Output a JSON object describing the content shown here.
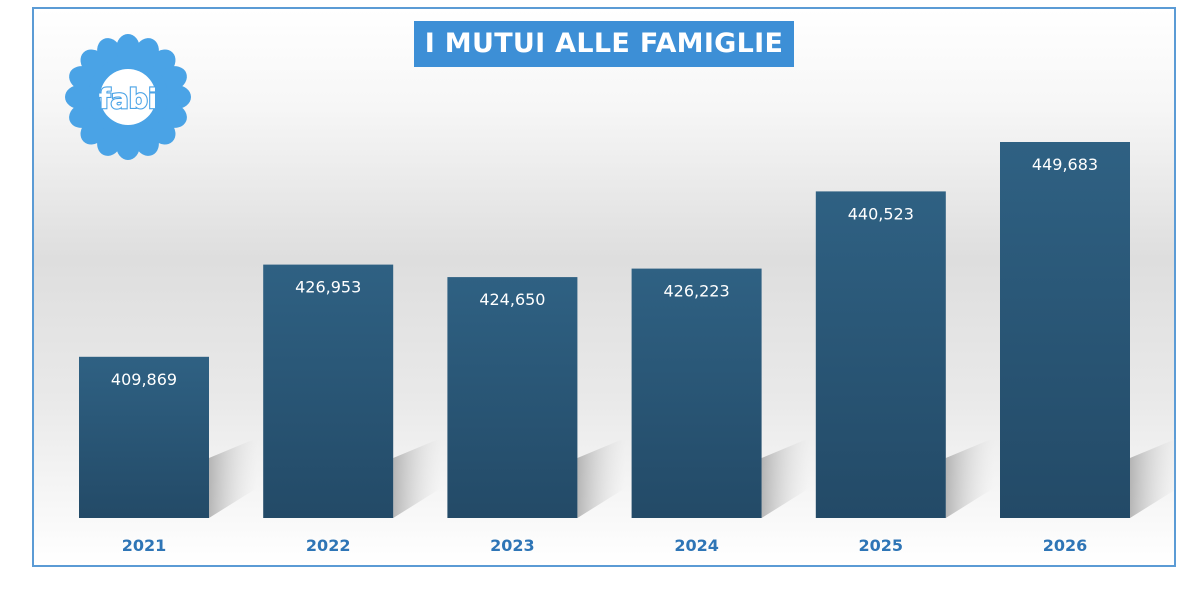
{
  "logo": {
    "text": "fabi",
    "icon": "fabi-flower-logo",
    "color": "#4aa3e6"
  },
  "chart_data": {
    "type": "bar",
    "title": "I MUTUI ALLE FAMIGLIE",
    "categories": [
      "2021",
      "2022",
      "2023",
      "2024",
      "2025",
      "2026"
    ],
    "values": [
      409869,
      426953,
      424650,
      426223,
      440523,
      449683
    ],
    "value_labels": [
      "409,869",
      "426,953",
      "424,650",
      "426,223",
      "440,523",
      "449,683"
    ],
    "xlabel": "",
    "ylabel": "",
    "ylim": [
      380000,
      460000
    ],
    "grid": false,
    "legend": "none",
    "colors": {
      "bar_top": "#2e5f80",
      "bar_bottom": "#244d6b",
      "title_bg": "#3d8fd6",
      "category_text": "#2e75b6",
      "border": "#5b9bd5"
    }
  }
}
